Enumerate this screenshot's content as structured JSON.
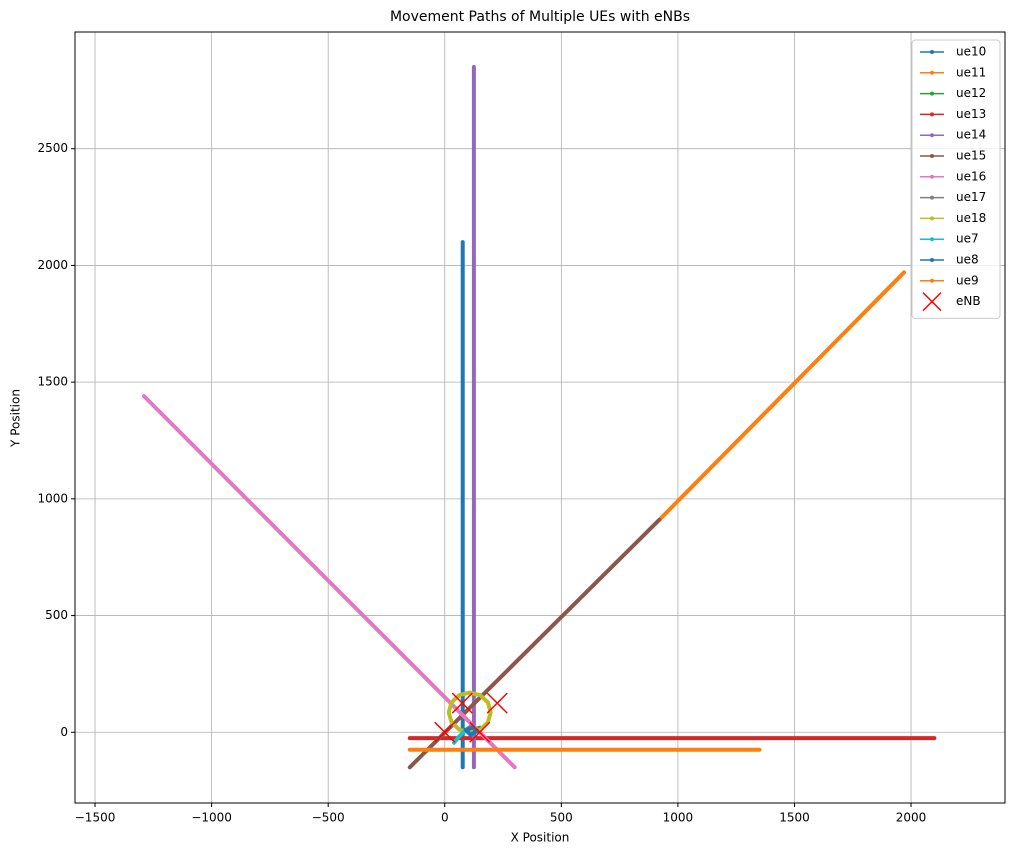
{
  "chart_data": {
    "type": "line",
    "title": "Movement Paths of Multiple UEs with eNBs",
    "xlabel": "X Position",
    "ylabel": "Y Position",
    "xlim": [
      -1586,
      2403
    ],
    "ylim": [
      -303,
      3000
    ],
    "xticks": [
      {
        "value": -1500,
        "label": "−1500"
      },
      {
        "value": -1000,
        "label": "−1000"
      },
      {
        "value": -500,
        "label": "−500"
      },
      0,
      500,
      1000,
      1500,
      2000
    ],
    "yticks": [
      0,
      500,
      1000,
      1500,
      2000,
      2500
    ],
    "grid": true,
    "legend": "upper right",
    "series": [
      {
        "name": "ue10",
        "color": "#1f77b4",
        "x": [
          77,
          77
        ],
        "y": [
          -150,
          2100
        ]
      },
      {
        "name": "ue11",
        "color": "#ff7f0e",
        "x": [
          920,
          1970
        ],
        "y": [
          910,
          1970
        ]
      },
      {
        "name": "ue12",
        "color": "#2ca02c",
        "x": [
          100,
          150
        ],
        "y": [
          0,
          20
        ]
      },
      {
        "name": "ue13",
        "color": "#d62728",
        "x": [
          -150,
          2100
        ],
        "y": [
          -25,
          -25
        ]
      },
      {
        "name": "ue14",
        "color": "#9467bd",
        "x": [
          125,
          125
        ],
        "y": [
          -150,
          2850
        ]
      },
      {
        "name": "ue15",
        "color": "#8c564b",
        "x": [
          -150,
          920
        ],
        "y": [
          -150,
          910
        ]
      },
      {
        "name": "ue16",
        "color": "#e377c2",
        "x": [
          -1290,
          300
        ],
        "y": [
          1440,
          -150
        ]
      },
      {
        "name": "ue17",
        "color": "#7f7f7f",
        "x": [
          90,
          120
        ],
        "y": [
          10,
          30
        ]
      },
      {
        "name": "ue18",
        "color": "#bcbd22",
        "x": [
          197,
          185,
          152,
          107,
          62,
          29,
          17,
          29,
          62,
          107,
          152,
          185,
          197
        ],
        "y": [
          85,
          128,
          159,
          170,
          159,
          128,
          85,
          43,
          11,
          0,
          11,
          43,
          85
        ]
      },
      {
        "name": "ue7",
        "color": "#17becf",
        "x": [
          40,
          60,
          80
        ],
        "y": [
          -45,
          -20,
          0
        ]
      },
      {
        "name": "ue8",
        "color": "#1f77b4",
        "x": [
          90,
          120,
          140,
          110,
          90
        ],
        "y": [
          10,
          20,
          5,
          -10,
          10
        ]
      },
      {
        "name": "ue9",
        "color": "#ff7f0e",
        "x": [
          -150,
          1350
        ],
        "y": [
          -75,
          -75
        ]
      },
      {
        "name": "eNB",
        "color": "#ff0000",
        "marker": "x",
        "x": [
          0,
          75,
          225,
          150
        ],
        "y": [
          0,
          125,
          125,
          0
        ]
      }
    ]
  }
}
